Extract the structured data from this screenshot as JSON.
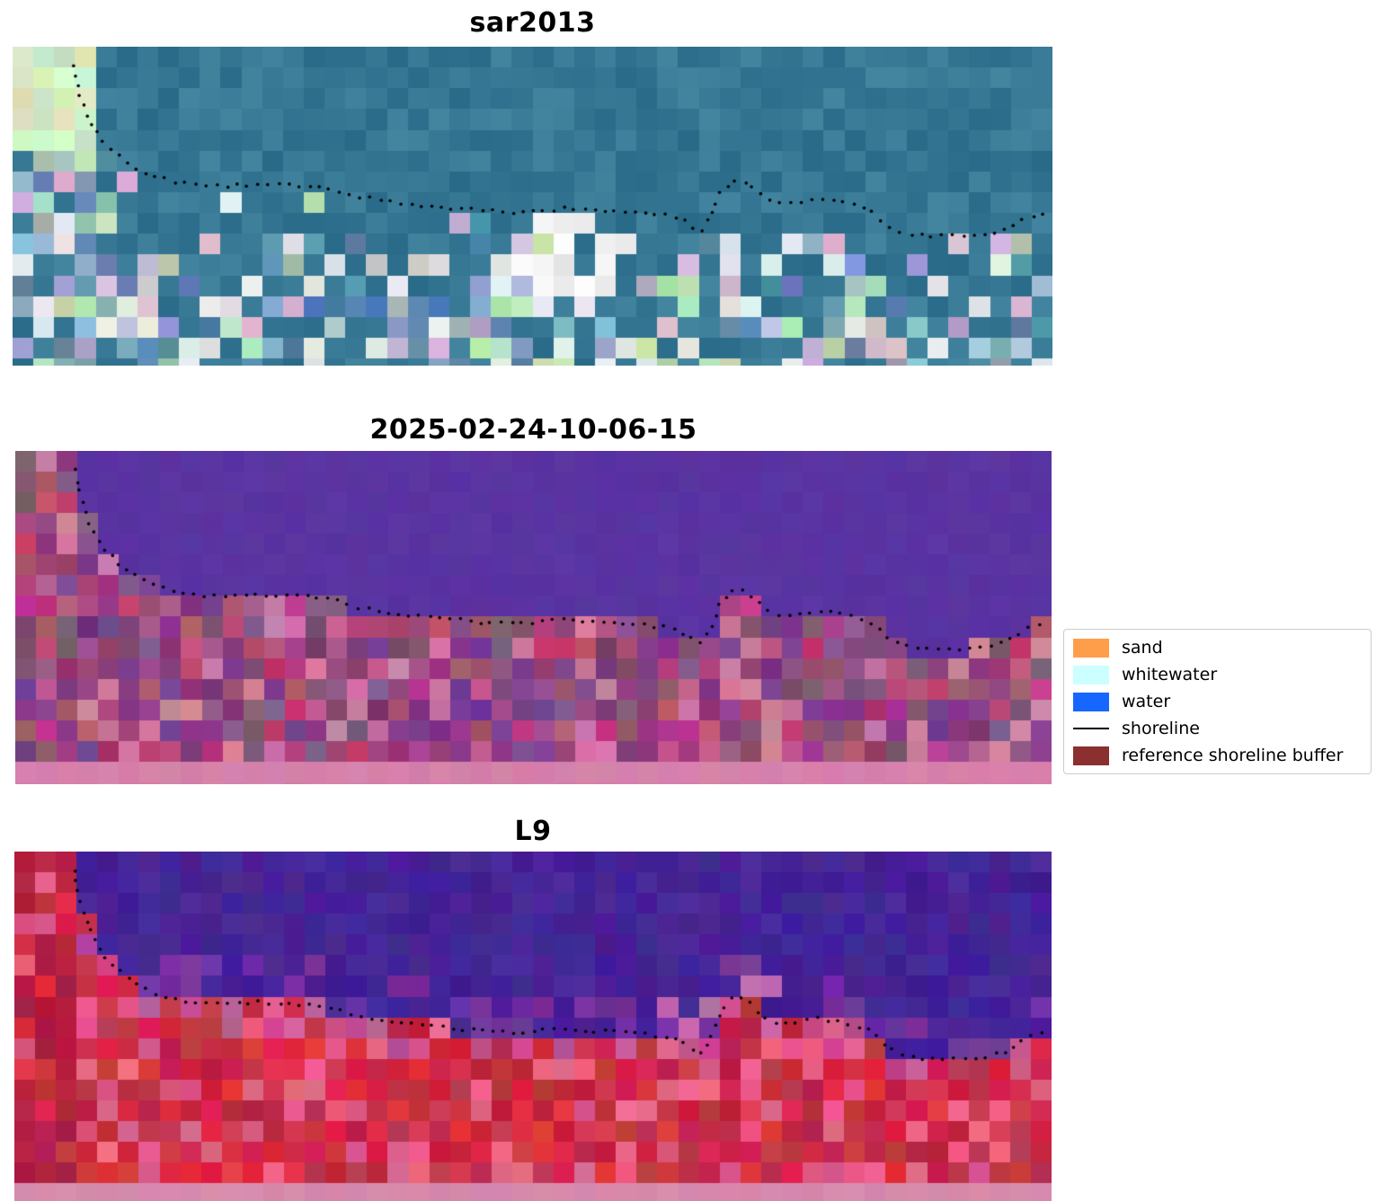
{
  "figure": {
    "background": "#ffffff"
  },
  "panels": [
    {
      "id": "sar2013",
      "title": "sar2013"
    },
    {
      "id": "classified",
      "title": "2025-02-24-10-06-15"
    },
    {
      "id": "l9",
      "title": "L9"
    }
  ],
  "legend": {
    "items": [
      {
        "label": "sand",
        "swatch": "patch",
        "color": "#ff9e4a"
      },
      {
        "label": "whitewater",
        "swatch": "patch",
        "color": "#ccffff"
      },
      {
        "label": "water",
        "swatch": "patch",
        "color": "#1667ff"
      },
      {
        "label": "shoreline",
        "swatch": "line",
        "color": "#000000"
      },
      {
        "label": "reference shoreline buffer",
        "swatch": "patch",
        "color": "#8b2f2f"
      }
    ]
  },
  "chart_data": {
    "type": "heatmap",
    "subtype": "satellite-image-panels-with-shoreline-overlay",
    "panel_titles": [
      "sar2013",
      "2025-02-24-10-06-15",
      "L9"
    ],
    "legend_entries": [
      "sand",
      "whitewater",
      "water",
      "shoreline",
      "reference shoreline buffer"
    ],
    "legend_position": "center right",
    "grid": false,
    "shoreline_normalized": [
      [
        0.057,
        0.028
      ],
      [
        0.061,
        0.107
      ],
      [
        0.066,
        0.163
      ],
      [
        0.072,
        0.214
      ],
      [
        0.079,
        0.262
      ],
      [
        0.087,
        0.299
      ],
      [
        0.096,
        0.327
      ],
      [
        0.109,
        0.361
      ],
      [
        0.126,
        0.394
      ],
      [
        0.148,
        0.417
      ],
      [
        0.169,
        0.431
      ],
      [
        0.191,
        0.437
      ],
      [
        0.213,
        0.437
      ],
      [
        0.234,
        0.431
      ],
      [
        0.256,
        0.434
      ],
      [
        0.282,
        0.439
      ],
      [
        0.303,
        0.442
      ],
      [
        0.329,
        0.468
      ],
      [
        0.351,
        0.479
      ],
      [
        0.377,
        0.49
      ],
      [
        0.403,
        0.501
      ],
      [
        0.429,
        0.507
      ],
      [
        0.455,
        0.515
      ],
      [
        0.481,
        0.518
      ],
      [
        0.507,
        0.513
      ],
      [
        0.532,
        0.507
      ],
      [
        0.558,
        0.513
      ],
      [
        0.584,
        0.518
      ],
      [
        0.61,
        0.524
      ],
      [
        0.636,
        0.53
      ],
      [
        0.653,
        0.563
      ],
      [
        0.662,
        0.58
      ],
      [
        0.671,
        0.535
      ],
      [
        0.679,
        0.47
      ],
      [
        0.692,
        0.417
      ],
      [
        0.706,
        0.423
      ],
      [
        0.714,
        0.451
      ],
      [
        0.727,
        0.479
      ],
      [
        0.74,
        0.496
      ],
      [
        0.757,
        0.487
      ],
      [
        0.774,
        0.479
      ],
      [
        0.792,
        0.485
      ],
      [
        0.809,
        0.496
      ],
      [
        0.822,
        0.507
      ],
      [
        0.831,
        0.53
      ],
      [
        0.839,
        0.552
      ],
      [
        0.852,
        0.58
      ],
      [
        0.869,
        0.592
      ],
      [
        0.887,
        0.594
      ],
      [
        0.904,
        0.594
      ],
      [
        0.921,
        0.592
      ],
      [
        0.938,
        0.586
      ],
      [
        0.956,
        0.575
      ],
      [
        0.973,
        0.538
      ],
      [
        0.986,
        0.524
      ],
      [
        0.995,
        0.518
      ]
    ],
    "palettes": {
      "sar2013": {
        "sea_base": [
          40,
          106,
          136
        ],
        "bright_blue": [
          150,
          178,
          196
        ],
        "white": [
          228,
          232,
          233
        ],
        "green": [
          186,
          218,
          184
        ],
        "pink": [
          208,
          188,
          212
        ],
        "corner_green": [
          214,
          240,
          195
        ]
      },
      "classified": {
        "water": [
          90,
          52,
          162
        ],
        "land_base": [
          160,
          75,
          125
        ],
        "land_light": [
          208,
          122,
          162
        ],
        "land_purple": [
          126,
          62,
          138
        ],
        "bottom_strip": [
          214,
          129,
          172
        ]
      },
      "l9": {
        "water": [
          70,
          36,
          150
        ],
        "violet_band": [
          115,
          50,
          160
        ],
        "land_base": [
          205,
          24,
          70
        ],
        "land_light": [
          228,
          96,
          134
        ],
        "transition_pink": [
          196,
          82,
          150
        ],
        "bottom_strip": [
          215,
          138,
          172
        ]
      }
    }
  }
}
